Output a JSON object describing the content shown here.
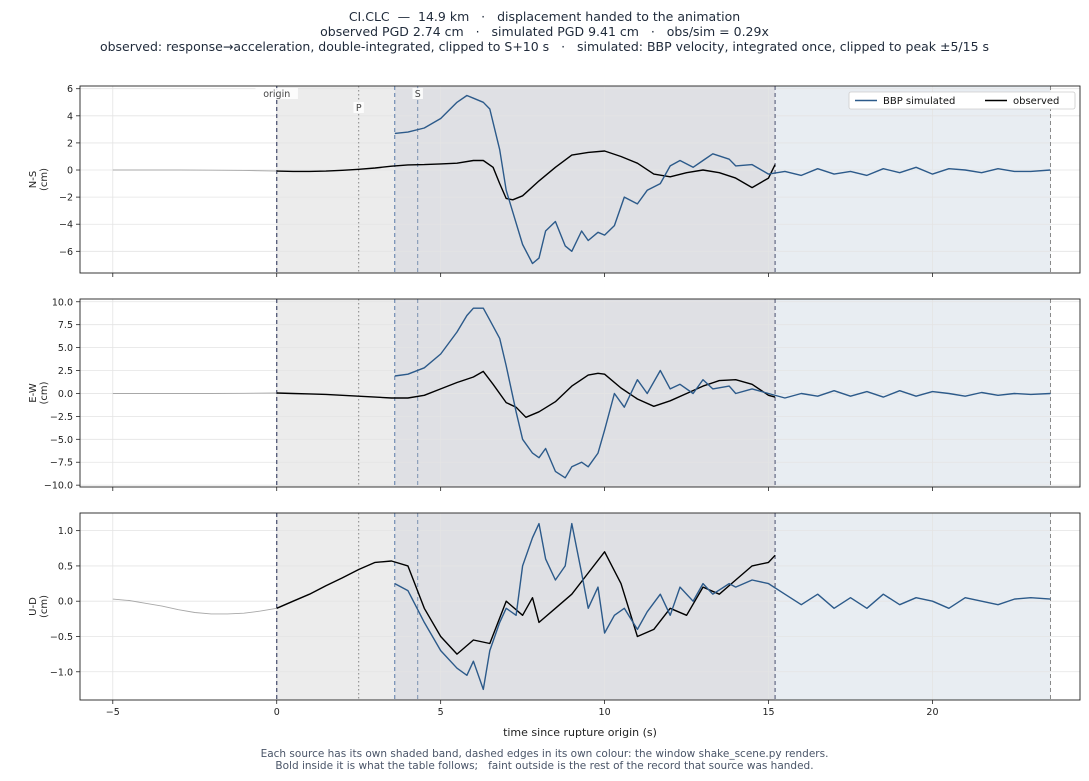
{
  "header": {
    "line1": "CI.CLC  —  14.9 km   ·   displacement handed to the animation",
    "line2": "observed PGD 2.74 cm   ·   simulated PGD 9.41 cm   ·   obs/sim = 0.29x",
    "line3": "observed: response→acceleration, double-integrated, clipped to S+10 s   ·   simulated: BBP velocity, integrated once, clipped to peak ±5/15 s"
  },
  "footer": {
    "line1": "Each source has its own shaded band, dashed edges in its own colour: the window shake_scene.py renders.",
    "line2": "Bold inside it is what the table follows;   faint outside is the rest of the record that source was handed."
  },
  "colors": {
    "simulated": "#2c5a8a",
    "observed": "#000000",
    "faint": "#a8a8a8",
    "band_observed": "#ececec",
    "band_simulated": "#e8edf2",
    "band_overlap": "#dfe0e4",
    "grid": "#e4e4e4",
    "frame": "#222222"
  },
  "chart_data": {
    "type": "line",
    "xlabel": "time since rupture origin (s)",
    "xlim": [
      -6,
      24.5
    ],
    "xticks": [
      -5,
      0,
      5,
      10,
      15,
      20
    ],
    "markers": [
      {
        "label": "origin",
        "t": 0,
        "style": "dashed"
      },
      {
        "label": "P",
        "t": 2.5,
        "style": "dotted"
      },
      {
        "label": "S",
        "t": 4.3,
        "style": "dashed"
      }
    ],
    "windows": {
      "observed": [
        0,
        15.2
      ],
      "simulated": [
        3.6,
        23.6
      ]
    },
    "legend": {
      "location": "upper-right",
      "entries": [
        "BBP simulated",
        "observed"
      ]
    },
    "panels": [
      {
        "ylabel": "N-S\n(cm)",
        "ylim": [
          -7.6,
          6.2
        ],
        "yticks": [
          -6,
          -4,
          -2,
          0,
          2,
          4,
          6
        ],
        "ytick_labels": [
          "−6",
          "−4",
          "−2",
          "0",
          "2",
          "4",
          "6"
        ],
        "series": [
          {
            "name": "observed faint",
            "t": [
              -5,
              -4,
              -3,
              -2,
              -1,
              0
            ],
            "y": [
              0,
              0,
              0,
              -0.01,
              -0.03,
              -0.08
            ]
          },
          {
            "name": "observed",
            "t": [
              0,
              0.5,
              1,
              1.5,
              2,
              2.5,
              3,
              3.5,
              4,
              4.5,
              5,
              5.5,
              6,
              6.3,
              6.6,
              6.8,
              7,
              7.2,
              7.5,
              8,
              8.5,
              9,
              9.5,
              10,
              10.5,
              11,
              11.5,
              12,
              12.5,
              13,
              13.5,
              14,
              14.5,
              15,
              15.2
            ],
            "y": [
              -0.08,
              -0.1,
              -0.1,
              -0.08,
              -0.02,
              0.05,
              0.15,
              0.28,
              0.38,
              0.4,
              0.45,
              0.5,
              0.7,
              0.7,
              0.2,
              -1.0,
              -2.1,
              -2.2,
              -1.9,
              -0.8,
              0.2,
              1.1,
              1.3,
              1.4,
              1.0,
              0.5,
              -0.3,
              -0.5,
              -0.2,
              0,
              -0.2,
              -0.6,
              -1.3,
              -0.6,
              0.4
            ]
          },
          {
            "name": "BBP simulated",
            "t": [
              3.6,
              4,
              4.5,
              5,
              5.5,
              5.8,
              6,
              6.3,
              6.5,
              6.8,
              7,
              7.5,
              7.8,
              8,
              8.2,
              8.5,
              8.8,
              9,
              9.3,
              9.5,
              9.8,
              10,
              10.3,
              10.6,
              11,
              11.3,
              11.7,
              12,
              12.3,
              12.7,
              13,
              13.3,
              13.8,
              14,
              14.5,
              15,
              15.5,
              16,
              16.5,
              17,
              17.5,
              18,
              18.5,
              19,
              19.5,
              20,
              20.5,
              21,
              21.5,
              22,
              22.5,
              23,
              23.6
            ],
            "y": [
              2.7,
              2.8,
              3.1,
              3.8,
              5.0,
              5.5,
              5.3,
              5.0,
              4.5,
              1.5,
              -1.5,
              -5.5,
              -6.9,
              -6.5,
              -4.5,
              -3.8,
              -5.6,
              -6.0,
              -4.5,
              -5.2,
              -4.6,
              -4.8,
              -4.1,
              -2.0,
              -2.5,
              -1.5,
              -1.0,
              0.3,
              0.7,
              0.2,
              0.7,
              1.2,
              0.8,
              0.3,
              0.4,
              -0.3,
              -0.1,
              -0.4,
              0.1,
              -0.3,
              -0.1,
              -0.4,
              0.1,
              -0.2,
              0.2,
              -0.3,
              0.1,
              0,
              -0.2,
              0.1,
              -0.1,
              -0.1,
              0
            ]
          }
        ]
      },
      {
        "ylabel": "E-W\n(cm)",
        "ylim": [
          -10.2,
          10.3
        ],
        "yticks": [
          -10,
          -7.5,
          -5,
          -2.5,
          0,
          2.5,
          5,
          7.5,
          10
        ],
        "ytick_labels": [
          "−10.0",
          "−7.5",
          "−5.0",
          "−2.5",
          "0.0",
          "2.5",
          "5.0",
          "7.5",
          "10.0"
        ],
        "series": [
          {
            "name": "observed faint",
            "t": [
              -5,
              -4,
              -3,
              -2,
              -1,
              0
            ],
            "y": [
              0,
              0,
              0,
              0,
              0.02,
              0.05
            ]
          },
          {
            "name": "observed",
            "t": [
              0,
              0.5,
              1,
              1.5,
              2,
              2.5,
              3,
              3.5,
              4,
              4.5,
              5,
              5.5,
              6,
              6.3,
              6.6,
              7,
              7.3,
              7.6,
              8,
              8.5,
              9,
              9.5,
              9.8,
              10,
              10.5,
              11,
              11.5,
              12,
              12.5,
              13,
              13.5,
              14,
              14.5,
              15,
              15.2
            ],
            "y": [
              0.05,
              0,
              -0.05,
              -0.1,
              -0.2,
              -0.3,
              -0.4,
              -0.5,
              -0.5,
              -0.2,
              0.5,
              1.2,
              1.8,
              2.4,
              1.0,
              -1.0,
              -1.5,
              -2.6,
              -2.0,
              -0.9,
              0.8,
              2.0,
              2.2,
              2.1,
              0.6,
              -0.6,
              -1.4,
              -0.8,
              0,
              0.8,
              1.4,
              1.5,
              1.0,
              -0.2,
              -0.4
            ]
          },
          {
            "name": "BBP simulated",
            "t": [
              3.6,
              4,
              4.5,
              5,
              5.5,
              5.8,
              6,
              6.3,
              6.5,
              6.8,
              7,
              7.3,
              7.5,
              7.8,
              8,
              8.2,
              8.5,
              8.8,
              9,
              9.3,
              9.5,
              9.8,
              10,
              10.3,
              10.6,
              11,
              11.3,
              11.7,
              12,
              12.3,
              12.7,
              13,
              13.3,
              13.8,
              14,
              14.5,
              15,
              15.5,
              16,
              16.5,
              17,
              17.5,
              18,
              18.5,
              19,
              19.5,
              20,
              20.5,
              21,
              21.5,
              22,
              22.5,
              23,
              23.6
            ],
            "y": [
              1.9,
              2.1,
              2.8,
              4.3,
              6.7,
              8.5,
              9.3,
              9.3,
              8.0,
              6.0,
              3.0,
              -2.0,
              -5.0,
              -6.5,
              -7.0,
              -6.0,
              -8.5,
              -9.2,
              -8.0,
              -7.5,
              -8.0,
              -6.5,
              -4.0,
              0,
              -1.5,
              1.5,
              0,
              2.5,
              0.5,
              1.0,
              0,
              1.5,
              0.5,
              0.8,
              0,
              0.5,
              0,
              -0.5,
              0,
              -0.3,
              0.3,
              -0.3,
              0.2,
              -0.4,
              0.3,
              -0.3,
              0.2,
              0,
              -0.3,
              0.1,
              -0.2,
              0,
              -0.1,
              0
            ]
          }
        ]
      },
      {
        "ylabel": "U-D\n(cm)",
        "ylim": [
          -1.4,
          1.25
        ],
        "yticks": [
          -1,
          -0.5,
          0,
          0.5,
          1
        ],
        "ytick_labels": [
          "−1.0",
          "−0.5",
          "0.0",
          "0.5",
          "1.0"
        ],
        "series": [
          {
            "name": "observed faint",
            "t": [
              -5,
              -4.5,
              -4,
              -3.5,
              -3,
              -2.5,
              -2,
              -1.5,
              -1,
              -0.5,
              0
            ],
            "y": [
              0.03,
              0.01,
              -0.03,
              -0.07,
              -0.12,
              -0.16,
              -0.18,
              -0.18,
              -0.17,
              -0.14,
              -0.1
            ]
          },
          {
            "name": "observed",
            "t": [
              0,
              0.5,
              1,
              1.5,
              2,
              2.5,
              3,
              3.5,
              4,
              4.5,
              5,
              5.5,
              6,
              6.5,
              7,
              7.5,
              7.8,
              8,
              8.5,
              9,
              9.5,
              10,
              10.5,
              11,
              11.5,
              12,
              12.5,
              13,
              13.5,
              14,
              14.5,
              15,
              15.2
            ],
            "y": [
              -0.1,
              0,
              0.1,
              0.22,
              0.33,
              0.45,
              0.55,
              0.57,
              0.5,
              -0.1,
              -0.5,
              -0.75,
              -0.55,
              -0.6,
              0.0,
              -0.2,
              0.05,
              -0.3,
              -0.1,
              0.1,
              0.4,
              0.7,
              0.25,
              -0.5,
              -0.4,
              -0.1,
              -0.2,
              0.2,
              0.1,
              0.3,
              0.5,
              0.55,
              0.65
            ]
          },
          {
            "name": "BBP simulated",
            "t": [
              3.6,
              4,
              4.5,
              5,
              5.5,
              5.8,
              6,
              6.3,
              6.5,
              6.8,
              7,
              7.3,
              7.5,
              7.8,
              8,
              8.2,
              8.5,
              8.8,
              9,
              9.3,
              9.5,
              9.8,
              10,
              10.3,
              10.6,
              11,
              11.3,
              11.7,
              12,
              12.3,
              12.7,
              13,
              13.3,
              13.8,
              14,
              14.5,
              15,
              15.5,
              16,
              16.5,
              17,
              17.5,
              18,
              18.5,
              19,
              19.5,
              20,
              20.5,
              21,
              21.5,
              22,
              22.5,
              23,
              23.6
            ],
            "y": [
              0.25,
              0.15,
              -0.3,
              -0.7,
              -0.95,
              -1.05,
              -0.85,
              -1.25,
              -0.7,
              -0.3,
              -0.1,
              -0.2,
              0.5,
              0.9,
              1.1,
              0.6,
              0.3,
              0.5,
              1.1,
              0.4,
              -0.1,
              0.2,
              -0.45,
              -0.2,
              -0.1,
              -0.4,
              -0.15,
              0.1,
              -0.2,
              0.2,
              0,
              0.25,
              0.1,
              0.25,
              0.2,
              0.3,
              0.25,
              0.1,
              -0.05,
              0.1,
              -0.1,
              0.05,
              -0.1,
              0.1,
              -0.05,
              0.05,
              0,
              -0.1,
              0.05,
              0,
              -0.05,
              0.03,
              0.05,
              0.03
            ]
          }
        ]
      }
    ]
  }
}
